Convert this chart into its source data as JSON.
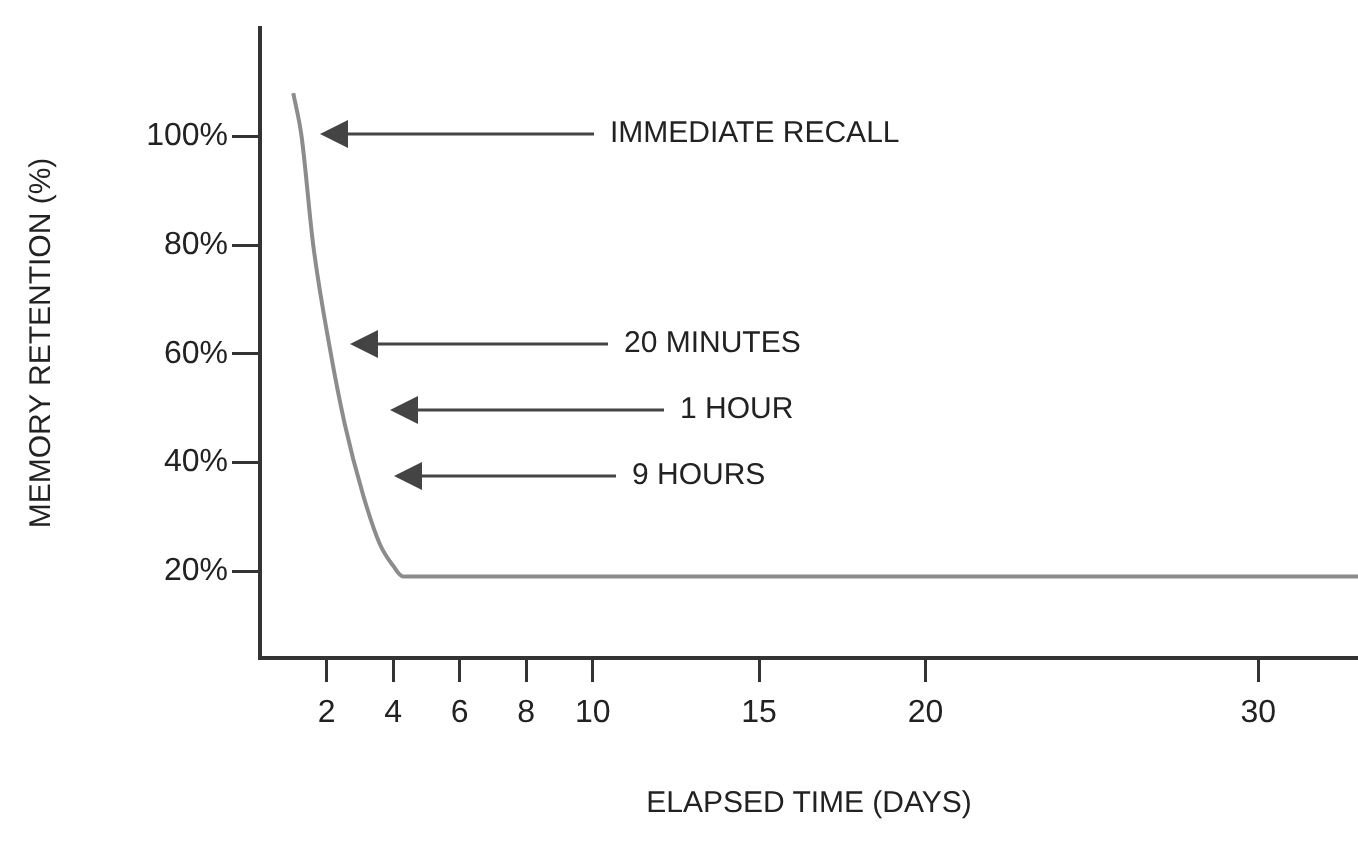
{
  "chart_data": {
    "type": "line",
    "xlabel": "ELAPSED TIME (DAYS)",
    "ylabel": "MEMORY RETENTION (%)",
    "x": [
      1,
      1.25,
      1.6,
      2.1,
      2.55,
      3.1,
      3.6,
      4,
      4.3,
      33
    ],
    "series": [
      {
        "color": "#8c8c8c",
        "values": [
          108,
          100,
          80,
          61,
          47,
          34,
          25,
          21,
          19,
          19
        ]
      }
    ],
    "xlim": [
      0,
      33
    ],
    "xticks": [
      2,
      4,
      6,
      8,
      10,
      15,
      20,
      30
    ],
    "ylim": [
      4,
      120
    ],
    "yticks": [
      {
        "value": 20,
        "label": "20%"
      },
      {
        "value": 40,
        "label": "40%"
      },
      {
        "value": 60,
        "label": "60%"
      },
      {
        "value": 80,
        "label": "80%"
      },
      {
        "value": 100,
        "label": "100%"
      }
    ],
    "annotations": [
      "IMMEDIATE RECALL",
      "20 MINUTES",
      "1 HOUR",
      "9 HOURS"
    ],
    "grid": false,
    "legend": false,
    "marker": "none",
    "line_style": "solid"
  }
}
